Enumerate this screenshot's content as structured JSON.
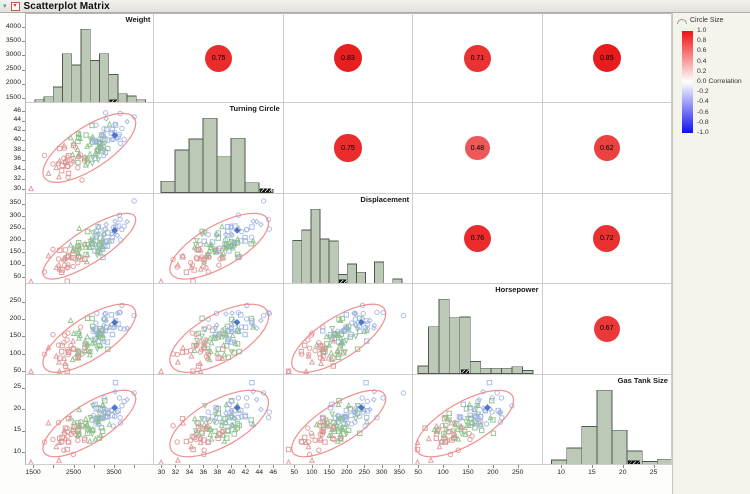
{
  "window": {
    "title": "Scatterplot Matrix",
    "disclosure_icon": "▾",
    "menu_icon": "▾"
  },
  "legend": {
    "title": "Circle Size",
    "axis_label": "Correlation",
    "ticks": [
      "1.0",
      "0.8",
      "0.6",
      "0.4",
      "0.2",
      "0.0",
      "-0.2",
      "-0.4",
      "-0.6",
      "-0.8",
      "-1.0"
    ],
    "zero_index": 5,
    "gradient_top": "#ee1111",
    "gradient_mid": "#ffffff",
    "gradient_bottom": "#1111ee"
  },
  "chart_data": {
    "type": "scatter",
    "subtype": "scatterplot_matrix",
    "title": "Scatterplot Matrix",
    "grid": "off",
    "legend_position": "top-right",
    "variables": [
      {
        "name": "Weight",
        "range": [
          1300,
          4500
        ],
        "center": 0.5,
        "load": 0.93,
        "side_ticks": [
          [
            1500,
            "1500"
          ],
          [
            2000,
            "2000"
          ],
          [
            2500,
            "2500"
          ],
          [
            3000,
            "3000"
          ],
          [
            3500,
            "3500"
          ],
          [
            4000,
            "4000"
          ]
        ],
        "bottom_ticks": [
          [
            1500,
            "1500"
          ],
          [
            2500,
            "2500"
          ],
          [
            3500,
            "3500"
          ]
        ],
        "bottom_minor": [
          2000,
          3000,
          4000
        ],
        "hist": {
          "start": 1520,
          "binw": 228,
          "heights": [
            0.05,
            0.09,
            0.22,
            0.67,
            0.52,
            1,
            0.58,
            0.67,
            0.39,
            0.13,
            0.1,
            0.05
          ],
          "hatch_bin": 8
        }
      },
      {
        "name": "Turning Circle",
        "range": [
          29,
          47.5
        ],
        "center": 0.5,
        "load": 0.8,
        "side_ticks": [
          [
            30,
            "30"
          ],
          [
            32,
            "32"
          ],
          [
            34,
            "34"
          ],
          [
            36,
            "36"
          ],
          [
            38,
            "38"
          ],
          [
            40,
            "40"
          ],
          [
            42,
            "42"
          ],
          [
            44,
            "44"
          ],
          [
            46,
            "46"
          ]
        ],
        "bottom_ticks": [
          [
            30,
            "30"
          ],
          [
            32,
            "32"
          ],
          [
            34,
            "34"
          ],
          [
            36,
            "36"
          ],
          [
            38,
            "38"
          ],
          [
            40,
            "40"
          ],
          [
            42,
            "42"
          ],
          [
            44,
            "44"
          ],
          [
            46,
            "46"
          ]
        ],
        "bottom_minor": [],
        "hist": {
          "start": 30,
          "binw": 2,
          "heights": [
            0.15,
            0.57,
            0.72,
            1,
            0.48,
            0.73,
            0.13,
            0.04
          ],
          "hatch_bin": 7
        }
      },
      {
        "name": "Displacement",
        "range": [
          20,
          390
        ],
        "center": 0.42,
        "load": 0.9,
        "side_ticks": [
          [
            50,
            "50"
          ],
          [
            100,
            "100"
          ],
          [
            150,
            "150"
          ],
          [
            200,
            "200"
          ],
          [
            250,
            "250"
          ],
          [
            300,
            "300"
          ],
          [
            350,
            "350"
          ]
        ],
        "bottom_ticks": [
          [
            50,
            "50"
          ],
          [
            100,
            "100"
          ],
          [
            150,
            "150"
          ],
          [
            200,
            "200"
          ],
          [
            250,
            "250"
          ],
          [
            300,
            "300"
          ],
          [
            350,
            "350"
          ]
        ],
        "bottom_minor": [],
        "hist": {
          "start": 45,
          "binw": 26,
          "heights": [
            0.58,
            0.72,
            1,
            0.6,
            0.57,
            0.12,
            0.26,
            0.15,
            0,
            0.29,
            0,
            0.06
          ],
          "hatch_bin": 5
        }
      },
      {
        "name": "Horsepower",
        "range": [
          40,
          300
        ],
        "center": 0.42,
        "load": 0.8,
        "side_ticks": [
          [
            50,
            "50"
          ],
          [
            100,
            "100"
          ],
          [
            150,
            "150"
          ],
          [
            200,
            "200"
          ],
          [
            250,
            "250"
          ]
        ],
        "bottom_ticks": [
          [
            50,
            "50"
          ],
          [
            100,
            "100"
          ],
          [
            150,
            "150"
          ],
          [
            200,
            "200"
          ],
          [
            250,
            "250"
          ]
        ],
        "bottom_minor": [],
        "hist": {
          "start": 50,
          "binw": 21,
          "heights": [
            0.1,
            0.63,
            1,
            0.75,
            0.76,
            0.16,
            0.07,
            0.07,
            0.07,
            0.09,
            0.04
          ],
          "hatch_bin": 4
        }
      },
      {
        "name": "Gas Tank Size",
        "range": [
          7,
          28
        ],
        "center": 0.47,
        "load": 0.86,
        "side_ticks": [
          [
            10,
            "10"
          ],
          [
            15,
            "15"
          ],
          [
            20,
            "20"
          ],
          [
            25,
            "25"
          ]
        ],
        "bottom_ticks": [
          [
            10,
            "10"
          ],
          [
            15,
            "15"
          ],
          [
            20,
            "20"
          ],
          [
            25,
            "25"
          ]
        ],
        "bottom_minor": [],
        "hist": {
          "start": 8.4,
          "binw": 2.45,
          "heights": [
            0.06,
            0.22,
            0.51,
            1,
            0.46,
            0.18,
            0.04,
            0.07
          ],
          "hatch_bin": 5
        }
      }
    ],
    "correlation_matrix": [
      [
        1,
        0.75,
        0.83,
        0.71,
        0.85
      ],
      [
        0.75,
        1,
        0.75,
        0.48,
        0.62
      ],
      [
        0.83,
        0.75,
        1,
        0.76,
        0.72
      ],
      [
        0.71,
        0.48,
        0.76,
        1,
        0.67
      ],
      [
        0.85,
        0.62,
        0.72,
        0.67,
        1
      ]
    ],
    "points": {
      "count": 116,
      "seed": 7,
      "groups": [
        {
          "color": "#dc9191",
          "shapes": [
            "triangle",
            "circle",
            "square"
          ]
        },
        {
          "color": "#85bc85",
          "shapes": [
            "square",
            "triangle-down",
            "triangle"
          ]
        },
        {
          "color": "#9cb0e2",
          "shapes": [
            "circle",
            "square",
            "diamond"
          ]
        }
      ],
      "selected_color": "#3a62c8"
    },
    "style": {
      "ellipse_color": "#ee8383",
      "hist_fill": "#bcc9b6",
      "hist_stroke": "#4f574f",
      "hatch_color": "#111111",
      "circle_red": "#e81b1b",
      "circle_blue": "#1b1be8",
      "panel_border": "#cdcdcd",
      "tick_color": "#8a8a8a"
    }
  }
}
